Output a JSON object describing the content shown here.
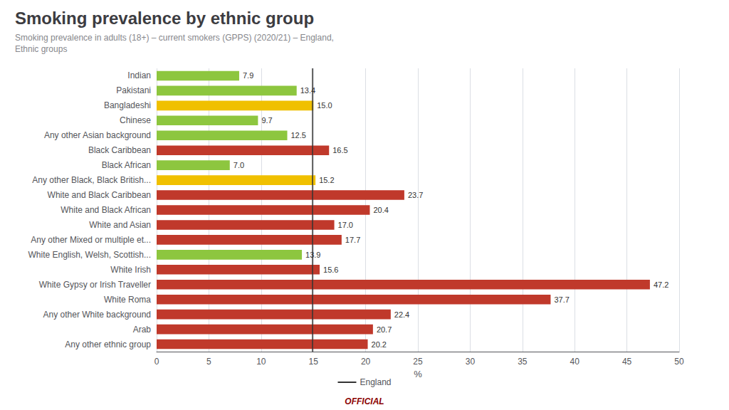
{
  "chart_data": {
    "type": "bar",
    "orientation": "horizontal",
    "title": "Smoking prevalence by ethnic group",
    "subtitle": "Smoking prevalence in adults (18+) – current smokers (GPPS) (2020/21) – England,\nEthnic groups",
    "xlabel": "%",
    "categories": [
      "Indian",
      "Pakistani",
      "Bangladeshi",
      "Chinese",
      "Any other Asian background",
      "Black Caribbean",
      "Black African",
      "Any other Black, Black British...",
      "White and Black Caribbean",
      "White and Black African",
      "White and Asian",
      "Any other Mixed or multiple et...",
      "White English, Welsh, Scottish...",
      "White Irish",
      "White Gypsy or Irish Traveller",
      "White Roma",
      "Any other White background",
      "Arab",
      "Any other ethnic group"
    ],
    "values": [
      7.9,
      13.4,
      15.0,
      9.7,
      12.5,
      16.5,
      7.0,
      15.2,
      23.7,
      20.4,
      17.0,
      17.7,
      13.9,
      15.6,
      47.2,
      37.7,
      22.4,
      20.7,
      20.2
    ],
    "value_labels": [
      "7.9",
      "13.4",
      "15.0",
      "9.7",
      "12.5",
      "16.5",
      "7.0",
      "15.2",
      "23.7",
      "20.4",
      "17.0",
      "17.7",
      "13.9",
      "15.6",
      "47.2",
      "37.7",
      "22.4",
      "20.7",
      "20.2"
    ],
    "colors": [
      "#8dc63f",
      "#8dc63f",
      "#f0c000",
      "#8dc63f",
      "#8dc63f",
      "#c0392b",
      "#8dc63f",
      "#f0c000",
      "#c0392b",
      "#c0392b",
      "#c0392b",
      "#c0392b",
      "#8dc63f",
      "#c0392b",
      "#c0392b",
      "#c0392b",
      "#c0392b",
      "#c0392b",
      "#c0392b"
    ],
    "data_labels": true,
    "xlim": [
      0,
      50
    ],
    "xticks": [
      0,
      5,
      10,
      15,
      20,
      25,
      30,
      35,
      40,
      45,
      50
    ],
    "grid": true,
    "reference_lines": [
      {
        "value": 14.9,
        "name": "England",
        "color": "#333333"
      }
    ],
    "annotations": [
      {
        "text": "OFFICIAL",
        "color": "#8b0000"
      }
    ]
  }
}
